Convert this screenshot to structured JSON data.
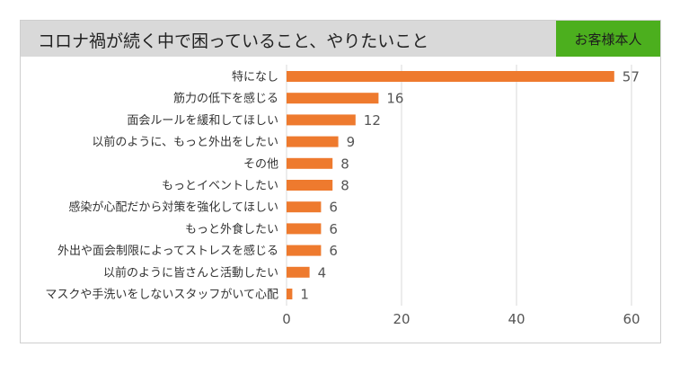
{
  "header": {
    "title": "コロナ禍が続く中で困っていること、やりたいこと",
    "badge": "お客様本人"
  },
  "colors": {
    "bar": "#ee7a2e",
    "badge": "#4caf1e",
    "header_bg": "#d9d9d9",
    "grid": "#d9d9d9"
  },
  "chart_data": {
    "type": "bar",
    "orientation": "horizontal",
    "categories": [
      "特になし",
      "筋力の低下を感じる",
      "面会ルールを緩和してほしい",
      "以前のように、もっと外出をしたい",
      "その他",
      "もっとイベントしたい",
      "感染が心配だから対策を強化してほしい",
      "もっと外食したい",
      "外出や面会制限によってストレスを感じる",
      "以前のように皆さんと活動したい",
      "マスクや手洗いをしないスタッフがいて心配"
    ],
    "values": [
      57,
      16,
      12,
      9,
      8,
      8,
      6,
      6,
      6,
      4,
      1
    ],
    "xlim": [
      0,
      60
    ],
    "xticks": [
      0,
      20,
      40,
      60
    ],
    "grid": true,
    "title": "コロナ禍が続く中で困っていること、やりたいこと",
    "xlabel": "",
    "ylabel": ""
  }
}
